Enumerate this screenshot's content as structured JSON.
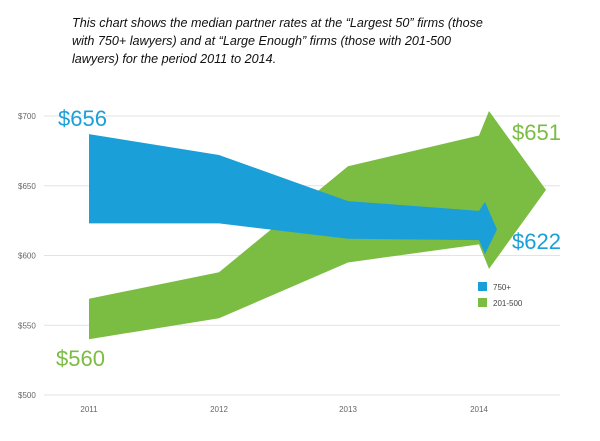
{
  "caption": "This chart shows the median partner rates at the “Largest 50” firms (those with 750+ lawyers) and at “Large Enough” firms (those with 201-500 lawyers) for the period 2011 to 2014.",
  "chart_data": {
    "type": "area",
    "title": "",
    "categories": [
      "2011",
      "2012",
      "2013",
      "2014"
    ],
    "ylim": [
      500,
      700
    ],
    "yticks": [
      500,
      550,
      600,
      650,
      700
    ],
    "ytick_labels": [
      "$500",
      "$550",
      "$600",
      "$650",
      "$700"
    ],
    "series": [
      {
        "name": "750+",
        "color": "#1a9fd9",
        "upper": [
          687,
          672,
          639,
          632
        ],
        "lower": [
          623,
          623,
          612,
          611
        ],
        "start_label": "$656",
        "end_label": "$622"
      },
      {
        "name": "201-500",
        "color": "#7bbd42",
        "upper": [
          569,
          588,
          664,
          686
        ],
        "lower": [
          540,
          555,
          595,
          608
        ],
        "start_label": "$560",
        "end_label": "$651"
      }
    ],
    "legend": [
      "750+",
      "201-500"
    ],
    "legend_position": "right"
  }
}
